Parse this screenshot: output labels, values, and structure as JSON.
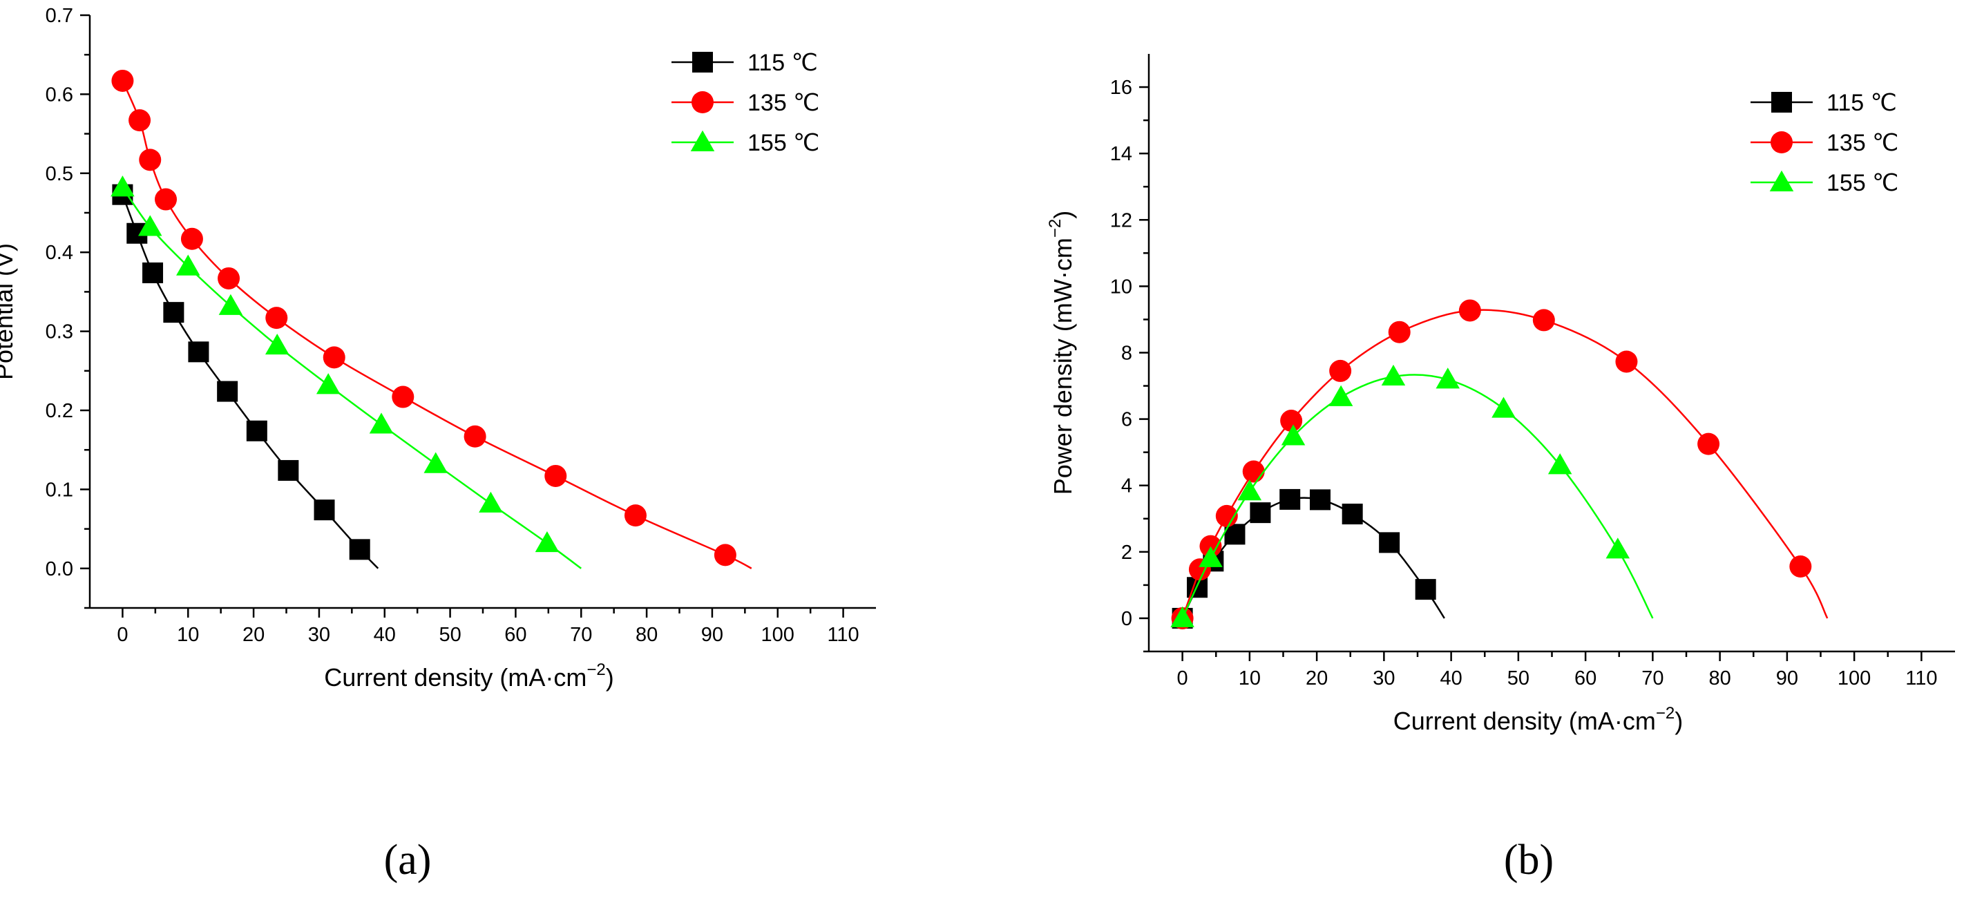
{
  "chart_data": [
    {
      "type": "line",
      "panel_label": "(a)",
      "xlabel": "Current density (mA·cm",
      "xlabel_exp": "−2",
      "xlabel_close": ")",
      "ylabel": "Potential (V)",
      "xlim": [
        -5,
        115
      ],
      "ylim": [
        -0.05,
        0.7
      ],
      "xticks": [
        "0",
        "10",
        "20",
        "30",
        "40",
        "50",
        "60",
        "70",
        "80",
        "90",
        "100",
        "110"
      ],
      "yticks": [
        "0.0",
        "0.1",
        "0.2",
        "0.3",
        "0.4",
        "0.5",
        "0.6",
        "0.7"
      ],
      "legend_position": "top-right",
      "series": [
        {
          "name": "115 ℃",
          "color": "#000000",
          "marker": "square",
          "x": [
            0,
            2.2,
            4.6,
            7.8,
            11.6,
            16,
            20.5,
            25.3,
            30.8,
            36.2
          ],
          "y": [
            0.473,
            0.424,
            0.374,
            0.324,
            0.274,
            0.224,
            0.174,
            0.124,
            0.074,
            0.024
          ],
          "end": [
            39,
            0
          ]
        },
        {
          "name": "135 ℃",
          "color": "#ff0000",
          "marker": "circle",
          "x": [
            0,
            2.6,
            4.2,
            6.6,
            10.6,
            16.2,
            23.5,
            32.3,
            42.8,
            53.8,
            66.1,
            78.3,
            92
          ],
          "y": [
            0.617,
            0.567,
            0.517,
            0.467,
            0.417,
            0.367,
            0.317,
            0.267,
            0.217,
            0.167,
            0.117,
            0.067,
            0.017
          ],
          "end": [
            96,
            0
          ]
        },
        {
          "name": "155 ℃",
          "color": "#00ff00",
          "marker": "triangle",
          "x": [
            0,
            4.2,
            10,
            16.5,
            23.6,
            31.4,
            39.5,
            47.8,
            56.2,
            64.8
          ],
          "y": [
            0.482,
            0.432,
            0.382,
            0.332,
            0.282,
            0.232,
            0.182,
            0.132,
            0.082,
            0.032
          ],
          "end": [
            70,
            0
          ]
        }
      ]
    },
    {
      "type": "line",
      "panel_label": "(b)",
      "xlabel": "Current density (mA·cm",
      "xlabel_exp": "−2",
      "xlabel_close": ")",
      "ylabel": "Power density (mW·cm",
      "ylabel_exp": "−2",
      "ylabel_close": ")",
      "xlim": [
        -5,
        115
      ],
      "ylim": [
        -1,
        17
      ],
      "xticks": [
        "0",
        "10",
        "20",
        "30",
        "40",
        "50",
        "60",
        "70",
        "80",
        "90",
        "100",
        "110"
      ],
      "yticks": [
        "0",
        "2",
        "4",
        "6",
        "8",
        "10",
        "12",
        "14",
        "16"
      ],
      "legend_position": "top-right",
      "series": [
        {
          "name": "115 ℃",
          "color": "#000000",
          "marker": "square",
          "x": [
            0,
            2.2,
            4.6,
            7.8,
            11.6,
            16,
            20.5,
            25.3,
            30.8,
            36.2
          ],
          "y": [
            0,
            0.93,
            1.72,
            2.53,
            3.18,
            3.58,
            3.57,
            3.14,
            2.28,
            0.87
          ],
          "end": [
            39,
            0
          ]
        },
        {
          "name": "135 ℃",
          "color": "#ff0000",
          "marker": "circle",
          "x": [
            0,
            2.6,
            4.2,
            6.6,
            10.6,
            16.2,
            23.5,
            32.3,
            42.8,
            53.8,
            66.1,
            78.3,
            92
          ],
          "y": [
            0,
            1.47,
            2.17,
            3.08,
            4.42,
            5.95,
            7.45,
            8.62,
            9.27,
            8.98,
            7.73,
            5.25,
            1.56
          ],
          "end": [
            96,
            0
          ]
        },
        {
          "name": "155 ℃",
          "color": "#00ff00",
          "marker": "triangle",
          "x": [
            0,
            4.2,
            10,
            16.5,
            23.6,
            31.4,
            39.5,
            47.8,
            56.2,
            64.8
          ],
          "y": [
            0,
            1.81,
            3.82,
            5.48,
            6.66,
            7.28,
            7.19,
            6.31,
            4.61,
            2.07
          ],
          "end": [
            70,
            0
          ]
        }
      ]
    }
  ]
}
